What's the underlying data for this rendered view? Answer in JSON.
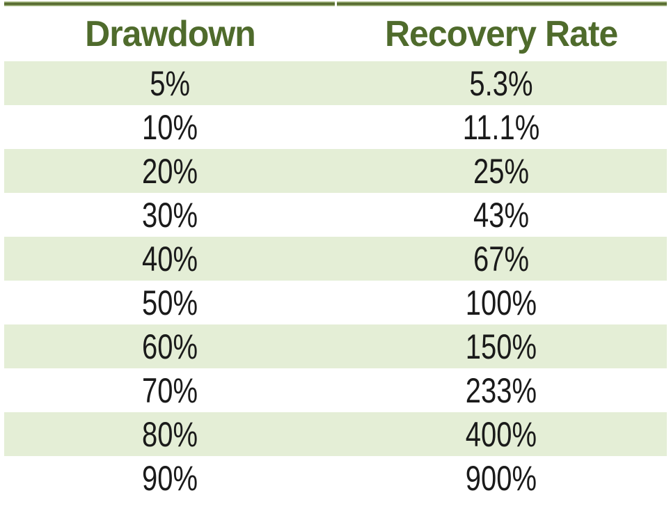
{
  "header": {
    "drawdown": "Drawdown",
    "recovery_rate": "Recovery Rate"
  },
  "rows": [
    {
      "drawdown": "5%",
      "recovery_rate": "5.3%"
    },
    {
      "drawdown": "10%",
      "recovery_rate": "11.1%"
    },
    {
      "drawdown": "20%",
      "recovery_rate": "25%"
    },
    {
      "drawdown": "30%",
      "recovery_rate": "43%"
    },
    {
      "drawdown": "40%",
      "recovery_rate": "67%"
    },
    {
      "drawdown": "50%",
      "recovery_rate": "100%"
    },
    {
      "drawdown": "60%",
      "recovery_rate": "150%"
    },
    {
      "drawdown": "70%",
      "recovery_rate": "233%"
    },
    {
      "drawdown": "80%",
      "recovery_rate": "400%"
    },
    {
      "drawdown": "90%",
      "recovery_rate": "900%"
    }
  ],
  "colors": {
    "header_text": "#4f6b2c",
    "row_stripe": "#e4eed6",
    "top_border_dark": "#55682e",
    "top_border_light": "#c3cfa9",
    "data_text": "#1a1a1a",
    "background": "#ffffff"
  },
  "chart_data": {
    "type": "table",
    "columns": [
      "Drawdown",
      "Recovery Rate"
    ],
    "rows": [
      [
        "5%",
        "5.3%"
      ],
      [
        "10%",
        "11.1%"
      ],
      [
        "20%",
        "25%"
      ],
      [
        "30%",
        "43%"
      ],
      [
        "40%",
        "67%"
      ],
      [
        "50%",
        "100%"
      ],
      [
        "60%",
        "150%"
      ],
      [
        "70%",
        "233%"
      ],
      [
        "80%",
        "400%"
      ],
      [
        "90%",
        "900%"
      ]
    ],
    "drawdown_pct": [
      5,
      10,
      20,
      30,
      40,
      50,
      60,
      70,
      80,
      90
    ],
    "recovery_rate_pct": [
      5.3,
      11.1,
      25,
      43,
      67,
      100,
      150,
      233,
      400,
      900
    ],
    "title": "",
    "layout": "two-column centered table, banded rows starting shaded"
  }
}
